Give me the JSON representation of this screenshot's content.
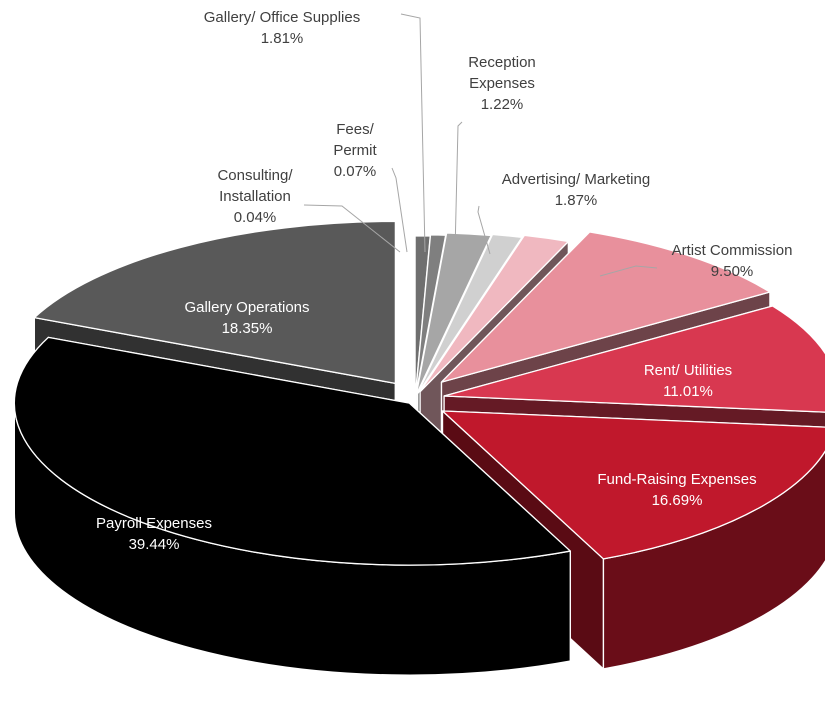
{
  "chart_data": {
    "type": "pie",
    "style": "3d-exploded",
    "title": "",
    "slices": [
      {
        "name": "Consulting/ Installation",
        "label_lines": [
          "Consulting/",
          "Installation",
          "0.04%"
        ],
        "value": 0.04,
        "value_label": "0.04%",
        "color": "#6f6f6f"
      },
      {
        "name": "Fees/ Permit",
        "label_lines": [
          "Fees/",
          "Permit",
          "0.07%"
        ],
        "value": 0.07,
        "value_label": "0.07%",
        "color": "#7f7f7f"
      },
      {
        "name": "Gallery/ Office Supplies",
        "label_lines": [
          "Gallery/ Office Supplies",
          "1.81%"
        ],
        "value": 1.81,
        "value_label": "1.81%",
        "color": "#a6a6a6"
      },
      {
        "name": "Reception Expenses",
        "label_lines": [
          "Reception",
          "Expenses",
          "1.22%"
        ],
        "value": 1.22,
        "value_label": "1.22%",
        "color": "#d0d0d0"
      },
      {
        "name": "Advertising/ Marketing",
        "label_lines": [
          "Advertising/ Marketing",
          "1.87%"
        ],
        "value": 1.87,
        "value_label": "1.87%",
        "color": "#f0b8c0"
      },
      {
        "name": "Artist Commission",
        "label_lines": [
          "Artist Commission",
          "9.50%"
        ],
        "value": 9.5,
        "value_label": "9.50%",
        "color": "#e8909c"
      },
      {
        "name": "Rent/ Utilities",
        "label_lines": [
          "Rent/ Utilities",
          "11.01%"
        ],
        "value": 11.01,
        "value_label": "11.01%",
        "color": "#d83850"
      },
      {
        "name": "Fund-Raising Expenses",
        "label_lines": [
          "Fund-Raising Expenses",
          "16.69%"
        ],
        "value": 16.69,
        "value_label": "16.69%",
        "color": "#c0182c"
      },
      {
        "name": "Payroll Expenses",
        "label_lines": [
          "Payroll Expenses",
          "39.44%"
        ],
        "value": 39.44,
        "value_label": "39.44%",
        "color": "#000000"
      },
      {
        "name": "Gallery Operations",
        "label_lines": [
          "Gallery Operations",
          "18.35%"
        ],
        "value": 18.35,
        "value_label": "18.35%",
        "color": "#595959"
      }
    ]
  }
}
